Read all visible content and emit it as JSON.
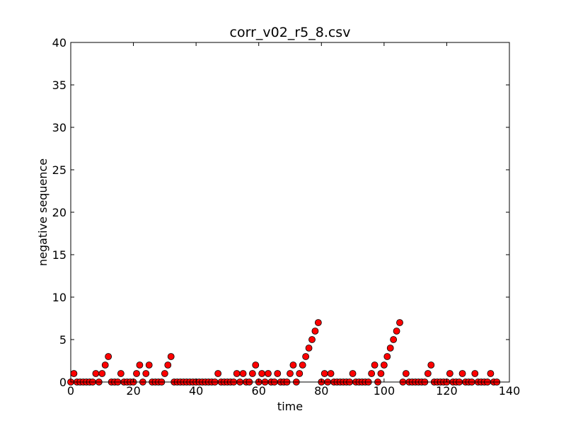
{
  "chart_data": {
    "type": "scatter",
    "title": "corr_v02_r5_8.csv",
    "xlabel": "time",
    "ylabel": "negative sequence",
    "xlim": [
      0,
      140
    ],
    "ylim": [
      0,
      40
    ],
    "xticks": [
      0,
      20,
      40,
      60,
      80,
      100,
      120,
      140
    ],
    "yticks": [
      0,
      5,
      10,
      15,
      20,
      25,
      30,
      35,
      40
    ],
    "grid": false,
    "marker_color": "#ff0000",
    "marker_edge_color": "#000000",
    "series": [
      {
        "x": [
          0,
          1,
          2,
          3,
          4,
          5,
          6,
          7,
          8,
          9,
          10,
          11,
          12,
          13,
          14,
          15,
          16,
          17,
          18,
          19,
          20,
          21,
          22,
          23,
          24,
          25,
          26,
          27,
          28,
          29,
          30,
          31,
          32,
          33,
          34,
          35,
          36,
          37,
          38,
          39,
          40,
          41,
          42,
          43,
          44,
          45,
          46,
          47,
          48,
          49,
          50,
          51,
          52,
          53,
          54,
          55,
          56,
          57,
          58,
          59,
          60,
          61,
          62,
          63,
          64,
          65,
          66,
          67,
          68,
          69,
          70,
          71,
          72,
          73,
          74,
          75,
          76,
          77,
          78,
          79,
          80,
          81,
          82,
          83,
          84,
          85,
          86,
          87,
          88,
          89,
          90,
          91,
          92,
          93,
          94,
          95,
          96,
          97,
          98,
          99,
          100,
          101,
          102,
          103,
          104,
          105,
          106,
          107,
          108,
          109,
          110,
          111,
          112,
          113,
          114,
          115,
          116,
          117,
          118,
          119,
          120,
          121,
          122,
          123,
          124,
          125,
          126,
          127,
          128,
          129,
          130,
          131,
          132,
          133,
          134,
          135,
          136
        ],
        "y": [
          0,
          1,
          0,
          0,
          0,
          0,
          0,
          0,
          1,
          0,
          1,
          2,
          3,
          0,
          0,
          0,
          1,
          0,
          0,
          0,
          0,
          1,
          2,
          0,
          1,
          2,
          0,
          0,
          0,
          0,
          1,
          2,
          3,
          0,
          0,
          0,
          0,
          0,
          0,
          0,
          0,
          0,
          0,
          0,
          0,
          0,
          0,
          1,
          0,
          0,
          0,
          0,
          0,
          1,
          0,
          1,
          0,
          0,
          1,
          2,
          0,
          1,
          0,
          1,
          0,
          0,
          1,
          0,
          0,
          0,
          1,
          2,
          0,
          1,
          2,
          3,
          4,
          5,
          6,
          7,
          0,
          1,
          0,
          1,
          0,
          0,
          0,
          0,
          0,
          0,
          1,
          0,
          0,
          0,
          0,
          0,
          1,
          2,
          0,
          1,
          2,
          3,
          4,
          5,
          6,
          7,
          0,
          1,
          0,
          0,
          0,
          0,
          0,
          0,
          1,
          2,
          0,
          0,
          0,
          0,
          0,
          1,
          0,
          0,
          0,
          1,
          0,
          0,
          0,
          1,
          0,
          0,
          0,
          0,
          1,
          0,
          0
        ]
      }
    ]
  }
}
